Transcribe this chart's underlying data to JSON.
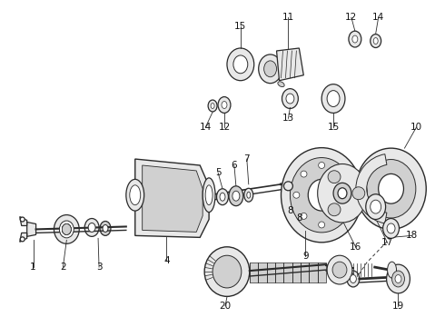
{
  "background_color": "#ffffff",
  "figure_width": 4.9,
  "figure_height": 3.6,
  "dpi": 100,
  "line_color": "#2a2a2a",
  "text_color": "#111111",
  "fill_light": "#e8e8e8",
  "fill_mid": "#d0d0d0",
  "fill_dark": "#b8b8b8"
}
